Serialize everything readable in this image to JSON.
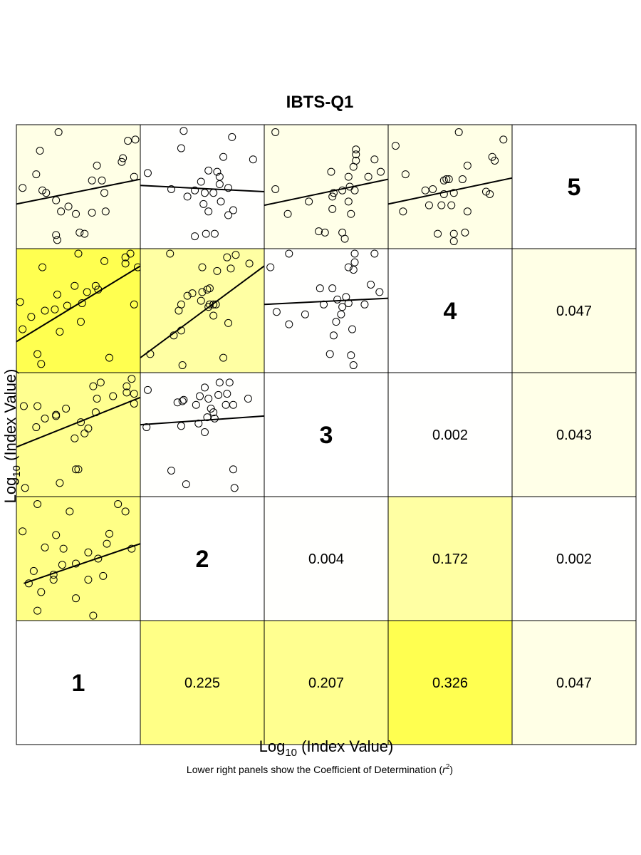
{
  "chart_data": {
    "type": "scatter",
    "title": "IBTS-Q1",
    "xlabel_main": "Log",
    "xlabel_sub": "10",
    "xlabel_rest": " (Index Value)",
    "ylabel_main": "Log",
    "ylabel_sub": "10",
    "ylabel_rest": " (Index Value)",
    "caption_main": "Lower right panels show the Coefficient of Determination (",
    "caption_r": "r",
    "caption_sup": "2",
    "caption_end": ")",
    "ages": [
      "1",
      "2",
      "3",
      "4",
      "5"
    ],
    "r2": [
      {
        "i": 1,
        "j": 2,
        "label": "0.225",
        "value": 0.225
      },
      {
        "i": 1,
        "j": 3,
        "label": "0.207",
        "value": 0.207
      },
      {
        "i": 1,
        "j": 4,
        "label": "0.326",
        "value": 0.326
      },
      {
        "i": 1,
        "j": 5,
        "label": "0.047",
        "value": 0.047
      },
      {
        "i": 2,
        "j": 3,
        "label": "0.004",
        "value": 0.004
      },
      {
        "i": 2,
        "j": 4,
        "label": "0.172",
        "value": 0.172
      },
      {
        "i": 2,
        "j": 5,
        "label": "0.002",
        "value": 0.002
      },
      {
        "i": 3,
        "j": 4,
        "label": "0.002",
        "value": 0.002
      },
      {
        "i": 3,
        "j": 5,
        "label": "0.043",
        "value": 0.043
      },
      {
        "i": 4,
        "j": 5,
        "label": "0.047",
        "value": 0.047
      }
    ],
    "scatter_panels": [
      {
        "x_age": 1,
        "y_age": 2,
        "r2": 0.225,
        "line": [
          [
            0.06,
            0.3
          ],
          [
            1.0,
            0.62
          ]
        ],
        "points": [
          [
            0.17,
            0.94
          ],
          [
            0.82,
            0.94
          ],
          [
            0.43,
            0.88
          ],
          [
            0.88,
            0.88
          ],
          [
            0.05,
            0.72
          ],
          [
            0.75,
            0.7
          ],
          [
            0.32,
            0.69
          ],
          [
            0.73,
            0.62
          ],
          [
            0.23,
            0.59
          ],
          [
            0.38,
            0.58
          ],
          [
            0.93,
            0.58
          ],
          [
            0.58,
            0.55
          ],
          [
            0.66,
            0.5
          ],
          [
            0.48,
            0.46
          ],
          [
            0.37,
            0.45
          ],
          [
            0.14,
            0.4
          ],
          [
            0.3,
            0.37
          ],
          [
            0.7,
            0.36
          ],
          [
            0.58,
            0.33
          ],
          [
            0.1,
            0.3
          ],
          [
            0.3,
            0.33
          ],
          [
            0.2,
            0.23
          ],
          [
            0.48,
            0.18
          ],
          [
            0.62,
            0.04
          ],
          [
            0.17,
            0.08
          ]
        ]
      },
      {
        "x_age": 1,
        "y_age": 3,
        "r2": 0.207,
        "line": [
          [
            0.0,
            0.4
          ],
          [
            1.0,
            0.8
          ]
        ],
        "points": [
          [
            0.68,
            0.92
          ],
          [
            0.62,
            0.89
          ],
          [
            0.89,
            0.89
          ],
          [
            0.78,
            0.81
          ],
          [
            0.65,
            0.79
          ],
          [
            0.89,
            0.84
          ],
          [
            0.06,
            0.73
          ],
          [
            0.17,
            0.73
          ],
          [
            0.4,
            0.71
          ],
          [
            0.95,
            0.75
          ],
          [
            0.95,
            0.83
          ],
          [
            0.64,
            0.68
          ],
          [
            0.32,
            0.65
          ],
          [
            0.23,
            0.63
          ],
          [
            0.32,
            0.66
          ],
          [
            0.16,
            0.56
          ],
          [
            0.52,
            0.6
          ],
          [
            0.58,
            0.55
          ],
          [
            0.47,
            0.47
          ],
          [
            0.55,
            0.51
          ],
          [
            0.48,
            0.22
          ],
          [
            0.5,
            0.22
          ],
          [
            0.35,
            0.11
          ],
          [
            0.07,
            0.07
          ],
          [
            0.93,
            0.95
          ]
        ]
      },
      {
        "x_age": 2,
        "y_age": 3,
        "r2": 0.004,
        "line": [
          [
            0.0,
            0.58
          ],
          [
            1.0,
            0.65
          ]
        ],
        "points": [
          [
            0.06,
            0.86
          ],
          [
            0.52,
            0.88
          ],
          [
            0.64,
            0.92
          ],
          [
            0.72,
            0.92
          ],
          [
            0.48,
            0.81
          ],
          [
            0.55,
            0.79
          ],
          [
            0.63,
            0.82
          ],
          [
            0.7,
            0.83
          ],
          [
            0.75,
            0.74
          ],
          [
            0.3,
            0.76
          ],
          [
            0.34,
            0.77
          ],
          [
            0.35,
            0.78
          ],
          [
            0.45,
            0.74
          ],
          [
            0.57,
            0.71
          ],
          [
            0.59,
            0.68
          ],
          [
            0.6,
            0.63
          ],
          [
            0.69,
            0.74
          ],
          [
            0.33,
            0.57
          ],
          [
            0.47,
            0.59
          ],
          [
            0.52,
            0.52
          ],
          [
            0.54,
            0.64
          ],
          [
            0.05,
            0.56
          ],
          [
            0.75,
            0.22
          ],
          [
            0.37,
            0.1
          ],
          [
            0.25,
            0.21
          ],
          [
            0.87,
            0.79
          ],
          [
            0.76,
            0.07
          ]
        ]
      },
      {
        "x_age": 1,
        "y_age": 4,
        "r2": 0.326,
        "line": [
          [
            0.0,
            0.25
          ],
          [
            1.0,
            0.86
          ]
        ],
        "points": [
          [
            0.5,
            0.96
          ],
          [
            0.88,
            0.93
          ],
          [
            0.92,
            0.96
          ],
          [
            0.88,
            0.88
          ],
          [
            0.98,
            0.85
          ],
          [
            0.71,
            0.9
          ],
          [
            0.21,
            0.85
          ],
          [
            0.64,
            0.7
          ],
          [
            0.57,
            0.65
          ],
          [
            0.66,
            0.67
          ],
          [
            0.53,
            0.56
          ],
          [
            0.47,
            0.7
          ],
          [
            0.33,
            0.63
          ],
          [
            0.41,
            0.54
          ],
          [
            0.31,
            0.51
          ],
          [
            0.23,
            0.5
          ],
          [
            0.95,
            0.55
          ],
          [
            0.12,
            0.45
          ],
          [
            0.52,
            0.41
          ],
          [
            0.35,
            0.33
          ],
          [
            0.05,
            0.35
          ],
          [
            0.17,
            0.15
          ],
          [
            0.2,
            0.07
          ],
          [
            0.75,
            0.12
          ],
          [
            0.03,
            0.57
          ]
        ]
      },
      {
        "x_age": 2,
        "y_age": 4,
        "r2": 0.172,
        "line": [
          [
            0.0,
            0.12
          ],
          [
            1.0,
            0.86
          ]
        ],
        "points": [
          [
            0.24,
            0.96
          ],
          [
            0.7,
            0.93
          ],
          [
            0.77,
            0.95
          ],
          [
            0.88,
            0.88
          ],
          [
            0.5,
            0.85
          ],
          [
            0.62,
            0.82
          ],
          [
            0.73,
            0.84
          ],
          [
            0.56,
            0.68
          ],
          [
            0.5,
            0.65
          ],
          [
            0.54,
            0.67
          ],
          [
            0.42,
            0.64
          ],
          [
            0.38,
            0.62
          ],
          [
            0.49,
            0.58
          ],
          [
            0.59,
            0.55
          ],
          [
            0.61,
            0.55
          ],
          [
            0.55,
            0.53
          ],
          [
            0.31,
            0.5
          ],
          [
            0.33,
            0.55
          ],
          [
            0.59,
            0.46
          ],
          [
            0.71,
            0.4
          ],
          [
            0.33,
            0.34
          ],
          [
            0.27,
            0.3
          ],
          [
            0.08,
            0.15
          ],
          [
            0.67,
            0.12
          ],
          [
            0.34,
            0.06
          ],
          [
            0.56,
            0.55
          ]
        ]
      },
      {
        "x_age": 3,
        "y_age": 4,
        "r2": 0.002,
        "line": [
          [
            0.0,
            0.55
          ],
          [
            1.0,
            0.6
          ]
        ],
        "points": [
          [
            0.2,
            0.96
          ],
          [
            0.73,
            0.96
          ],
          [
            0.89,
            0.96
          ],
          [
            0.73,
            0.89
          ],
          [
            0.68,
            0.85
          ],
          [
            0.72,
            0.83
          ],
          [
            0.05,
            0.85
          ],
          [
            0.45,
            0.68
          ],
          [
            0.55,
            0.68
          ],
          [
            0.86,
            0.71
          ],
          [
            0.93,
            0.65
          ],
          [
            0.66,
            0.61
          ],
          [
            0.68,
            0.56
          ],
          [
            0.59,
            0.59
          ],
          [
            0.63,
            0.53
          ],
          [
            0.48,
            0.55
          ],
          [
            0.81,
            0.55
          ],
          [
            0.62,
            0.47
          ],
          [
            0.1,
            0.49
          ],
          [
            0.33,
            0.47
          ],
          [
            0.58,
            0.41
          ],
          [
            0.71,
            0.35
          ],
          [
            0.2,
            0.39
          ],
          [
            0.56,
            0.3
          ],
          [
            0.53,
            0.15
          ],
          [
            0.7,
            0.14
          ],
          [
            0.72,
            0.06
          ]
        ]
      },
      {
        "x_age": 1,
        "y_age": 5,
        "r2": 0.047,
        "line": [
          [
            0.0,
            0.36
          ],
          [
            1.0,
            0.56
          ]
        ],
        "points": [
          [
            0.34,
            0.94
          ],
          [
            0.19,
            0.79
          ],
          [
            0.9,
            0.87
          ],
          [
            0.85,
            0.7
          ],
          [
            0.86,
            0.73
          ],
          [
            0.65,
            0.67
          ],
          [
            0.16,
            0.6
          ],
          [
            0.69,
            0.55
          ],
          [
            0.61,
            0.55
          ],
          [
            0.05,
            0.49
          ],
          [
            0.21,
            0.47
          ],
          [
            0.24,
            0.45
          ],
          [
            0.71,
            0.45
          ],
          [
            0.95,
            0.58
          ],
          [
            0.32,
            0.39
          ],
          [
            0.42,
            0.34
          ],
          [
            0.48,
            0.28
          ],
          [
            0.61,
            0.29
          ],
          [
            0.72,
            0.3
          ],
          [
            0.36,
            0.3
          ],
          [
            0.55,
            0.12
          ],
          [
            0.51,
            0.13
          ],
          [
            0.32,
            0.11
          ],
          [
            0.33,
            0.07
          ],
          [
            0.96,
            0.88
          ]
        ]
      },
      {
        "x_age": 2,
        "y_age": 5,
        "r2": 0.002,
        "line": [
          [
            0.0,
            0.51
          ],
          [
            1.0,
            0.46
          ]
        ],
        "points": [
          [
            0.35,
            0.95
          ],
          [
            0.74,
            0.9
          ],
          [
            0.33,
            0.81
          ],
          [
            0.67,
            0.74
          ],
          [
            0.91,
            0.72
          ],
          [
            0.06,
            0.61
          ],
          [
            0.55,
            0.63
          ],
          [
            0.62,
            0.62
          ],
          [
            0.64,
            0.58
          ],
          [
            0.49,
            0.54
          ],
          [
            0.64,
            0.52
          ],
          [
            0.71,
            0.49
          ],
          [
            0.52,
            0.45
          ],
          [
            0.59,
            0.45
          ],
          [
            0.44,
            0.47
          ],
          [
            0.25,
            0.48
          ],
          [
            0.38,
            0.42
          ],
          [
            0.65,
            0.38
          ],
          [
            0.51,
            0.36
          ],
          [
            0.55,
            0.3
          ],
          [
            0.71,
            0.27
          ],
          [
            0.75,
            0.31
          ],
          [
            0.53,
            0.12
          ],
          [
            0.6,
            0.12
          ],
          [
            0.44,
            0.1
          ]
        ]
      },
      {
        "x_age": 3,
        "y_age": 5,
        "r2": 0.043,
        "line": [
          [
            0.0,
            0.35
          ],
          [
            1.0,
            0.56
          ]
        ],
        "points": [
          [
            0.09,
            0.94
          ],
          [
            0.74,
            0.8
          ],
          [
            0.74,
            0.76
          ],
          [
            0.74,
            0.71
          ],
          [
            0.89,
            0.72
          ],
          [
            0.72,
            0.66
          ],
          [
            0.54,
            0.62
          ],
          [
            0.68,
            0.58
          ],
          [
            0.84,
            0.58
          ],
          [
            0.94,
            0.62
          ],
          [
            0.69,
            0.5
          ],
          [
            0.73,
            0.47
          ],
          [
            0.63,
            0.47
          ],
          [
            0.56,
            0.45
          ],
          [
            0.09,
            0.48
          ],
          [
            0.55,
            0.42
          ],
          [
            0.36,
            0.38
          ],
          [
            0.68,
            0.38
          ],
          [
            0.55,
            0.32
          ],
          [
            0.7,
            0.28
          ],
          [
            0.19,
            0.28
          ],
          [
            0.44,
            0.14
          ],
          [
            0.49,
            0.13
          ],
          [
            0.63,
            0.13
          ],
          [
            0.65,
            0.08
          ]
        ]
      },
      {
        "x_age": 4,
        "y_age": 5,
        "r2": 0.047,
        "line": [
          [
            0.0,
            0.36
          ],
          [
            1.0,
            0.57
          ]
        ],
        "points": [
          [
            0.57,
            0.94
          ],
          [
            0.93,
            0.88
          ],
          [
            0.06,
            0.83
          ],
          [
            0.86,
            0.71
          ],
          [
            0.84,
            0.74
          ],
          [
            0.64,
            0.67
          ],
          [
            0.14,
            0.6
          ],
          [
            0.6,
            0.56
          ],
          [
            0.47,
            0.56
          ],
          [
            0.49,
            0.56
          ],
          [
            0.45,
            0.55
          ],
          [
            0.3,
            0.47
          ],
          [
            0.36,
            0.48
          ],
          [
            0.53,
            0.45
          ],
          [
            0.45,
            0.44
          ],
          [
            0.79,
            0.46
          ],
          [
            0.82,
            0.44
          ],
          [
            0.33,
            0.35
          ],
          [
            0.43,
            0.35
          ],
          [
            0.51,
            0.35
          ],
          [
            0.64,
            0.3
          ],
          [
            0.12,
            0.3
          ],
          [
            0.4,
            0.12
          ],
          [
            0.53,
            0.12
          ],
          [
            0.62,
            0.13
          ],
          [
            0.53,
            0.06
          ]
        ]
      }
    ]
  }
}
